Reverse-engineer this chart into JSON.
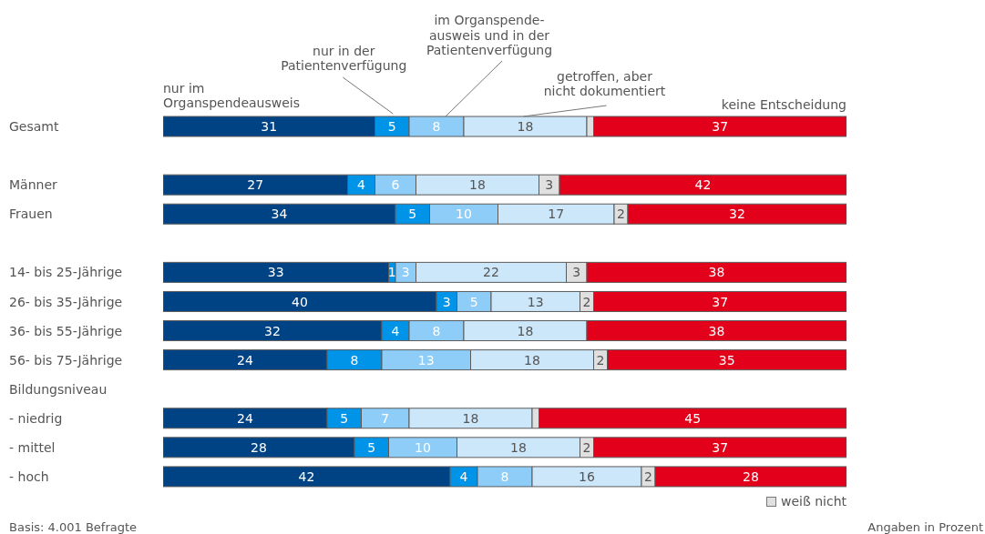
{
  "chart_data": {
    "type": "bar",
    "orientation": "horizontal",
    "stacked": true,
    "categories": [
      "Gesamt",
      null,
      "Männer",
      "Frauen",
      null,
      "14- bis 25-Jährige",
      "26- bis 35-Jährige",
      "36- bis 55-Jährige",
      "56- bis 75-Jährige",
      "Bildungsniveau",
      "- niedrig",
      "- mittel",
      "- hoch"
    ],
    "series": [
      {
        "name": "nur im\nOrganspendeausweis",
        "color": "#004385",
        "values": [
          31,
          null,
          27,
          34,
          null,
          33,
          40,
          32,
          24,
          null,
          24,
          28,
          42
        ],
        "value_labels": [
          "31",
          null,
          "27",
          "34",
          null,
          "33",
          "40",
          "32",
          "24",
          null,
          "24",
          "28",
          "42"
        ]
      },
      {
        "name": "nur in der\nPatientenverfügung",
        "color": "#0094e8",
        "values": [
          5,
          null,
          4,
          5,
          null,
          1,
          3,
          4,
          8,
          null,
          5,
          5,
          4
        ],
        "value_labels": [
          "5",
          null,
          "4",
          "5",
          null,
          "1",
          "3",
          "4",
          "8",
          null,
          "5",
          "5",
          "4"
        ]
      },
      {
        "name": "im Organspende-\nausweis und in der\nPatientenverfügung",
        "color": "#8ecdf8",
        "values": [
          8,
          null,
          6,
          10,
          null,
          3,
          5,
          8,
          13,
          null,
          7,
          10,
          8
        ],
        "value_labels": [
          "8",
          null,
          "6",
          "10",
          null,
          "3",
          "5",
          "8",
          "13",
          null,
          "7",
          "10",
          "8"
        ]
      },
      {
        "name": "getroffen, aber\nnicht dokumentiert",
        "color": "#cce6fa",
        "values": [
          18,
          null,
          18,
          17,
          null,
          22,
          13,
          18,
          18,
          null,
          18,
          18,
          16
        ],
        "value_labels": [
          "18",
          null,
          "18",
          "17",
          null,
          "22",
          "13",
          "18",
          "18",
          null,
          "18",
          "18",
          "16"
        ]
      },
      {
        "name": "weiß nicht",
        "color": "#e0e0e0",
        "values": [
          1,
          null,
          3,
          2,
          null,
          3,
          2,
          0,
          2,
          null,
          1,
          2,
          2
        ],
        "value_labels": [
          null,
          null,
          "3",
          "2",
          null,
          "3",
          "2",
          null,
          "2",
          null,
          null,
          "2",
          "2"
        ]
      },
      {
        "name": "keine Entscheidung",
        "color": "#e2001a",
        "values": [
          37,
          null,
          42,
          32,
          null,
          38,
          37,
          38,
          35,
          null,
          45,
          37,
          28
        ],
        "value_labels": [
          "37",
          null,
          "42",
          "32",
          null,
          "38",
          "37",
          "38",
          "35",
          null,
          "45",
          "37",
          "28"
        ]
      }
    ],
    "legend": "bottom right",
    "annotations": [
      "Basis: 4.001 Befragte",
      "Angaben in Prozent"
    ]
  }
}
